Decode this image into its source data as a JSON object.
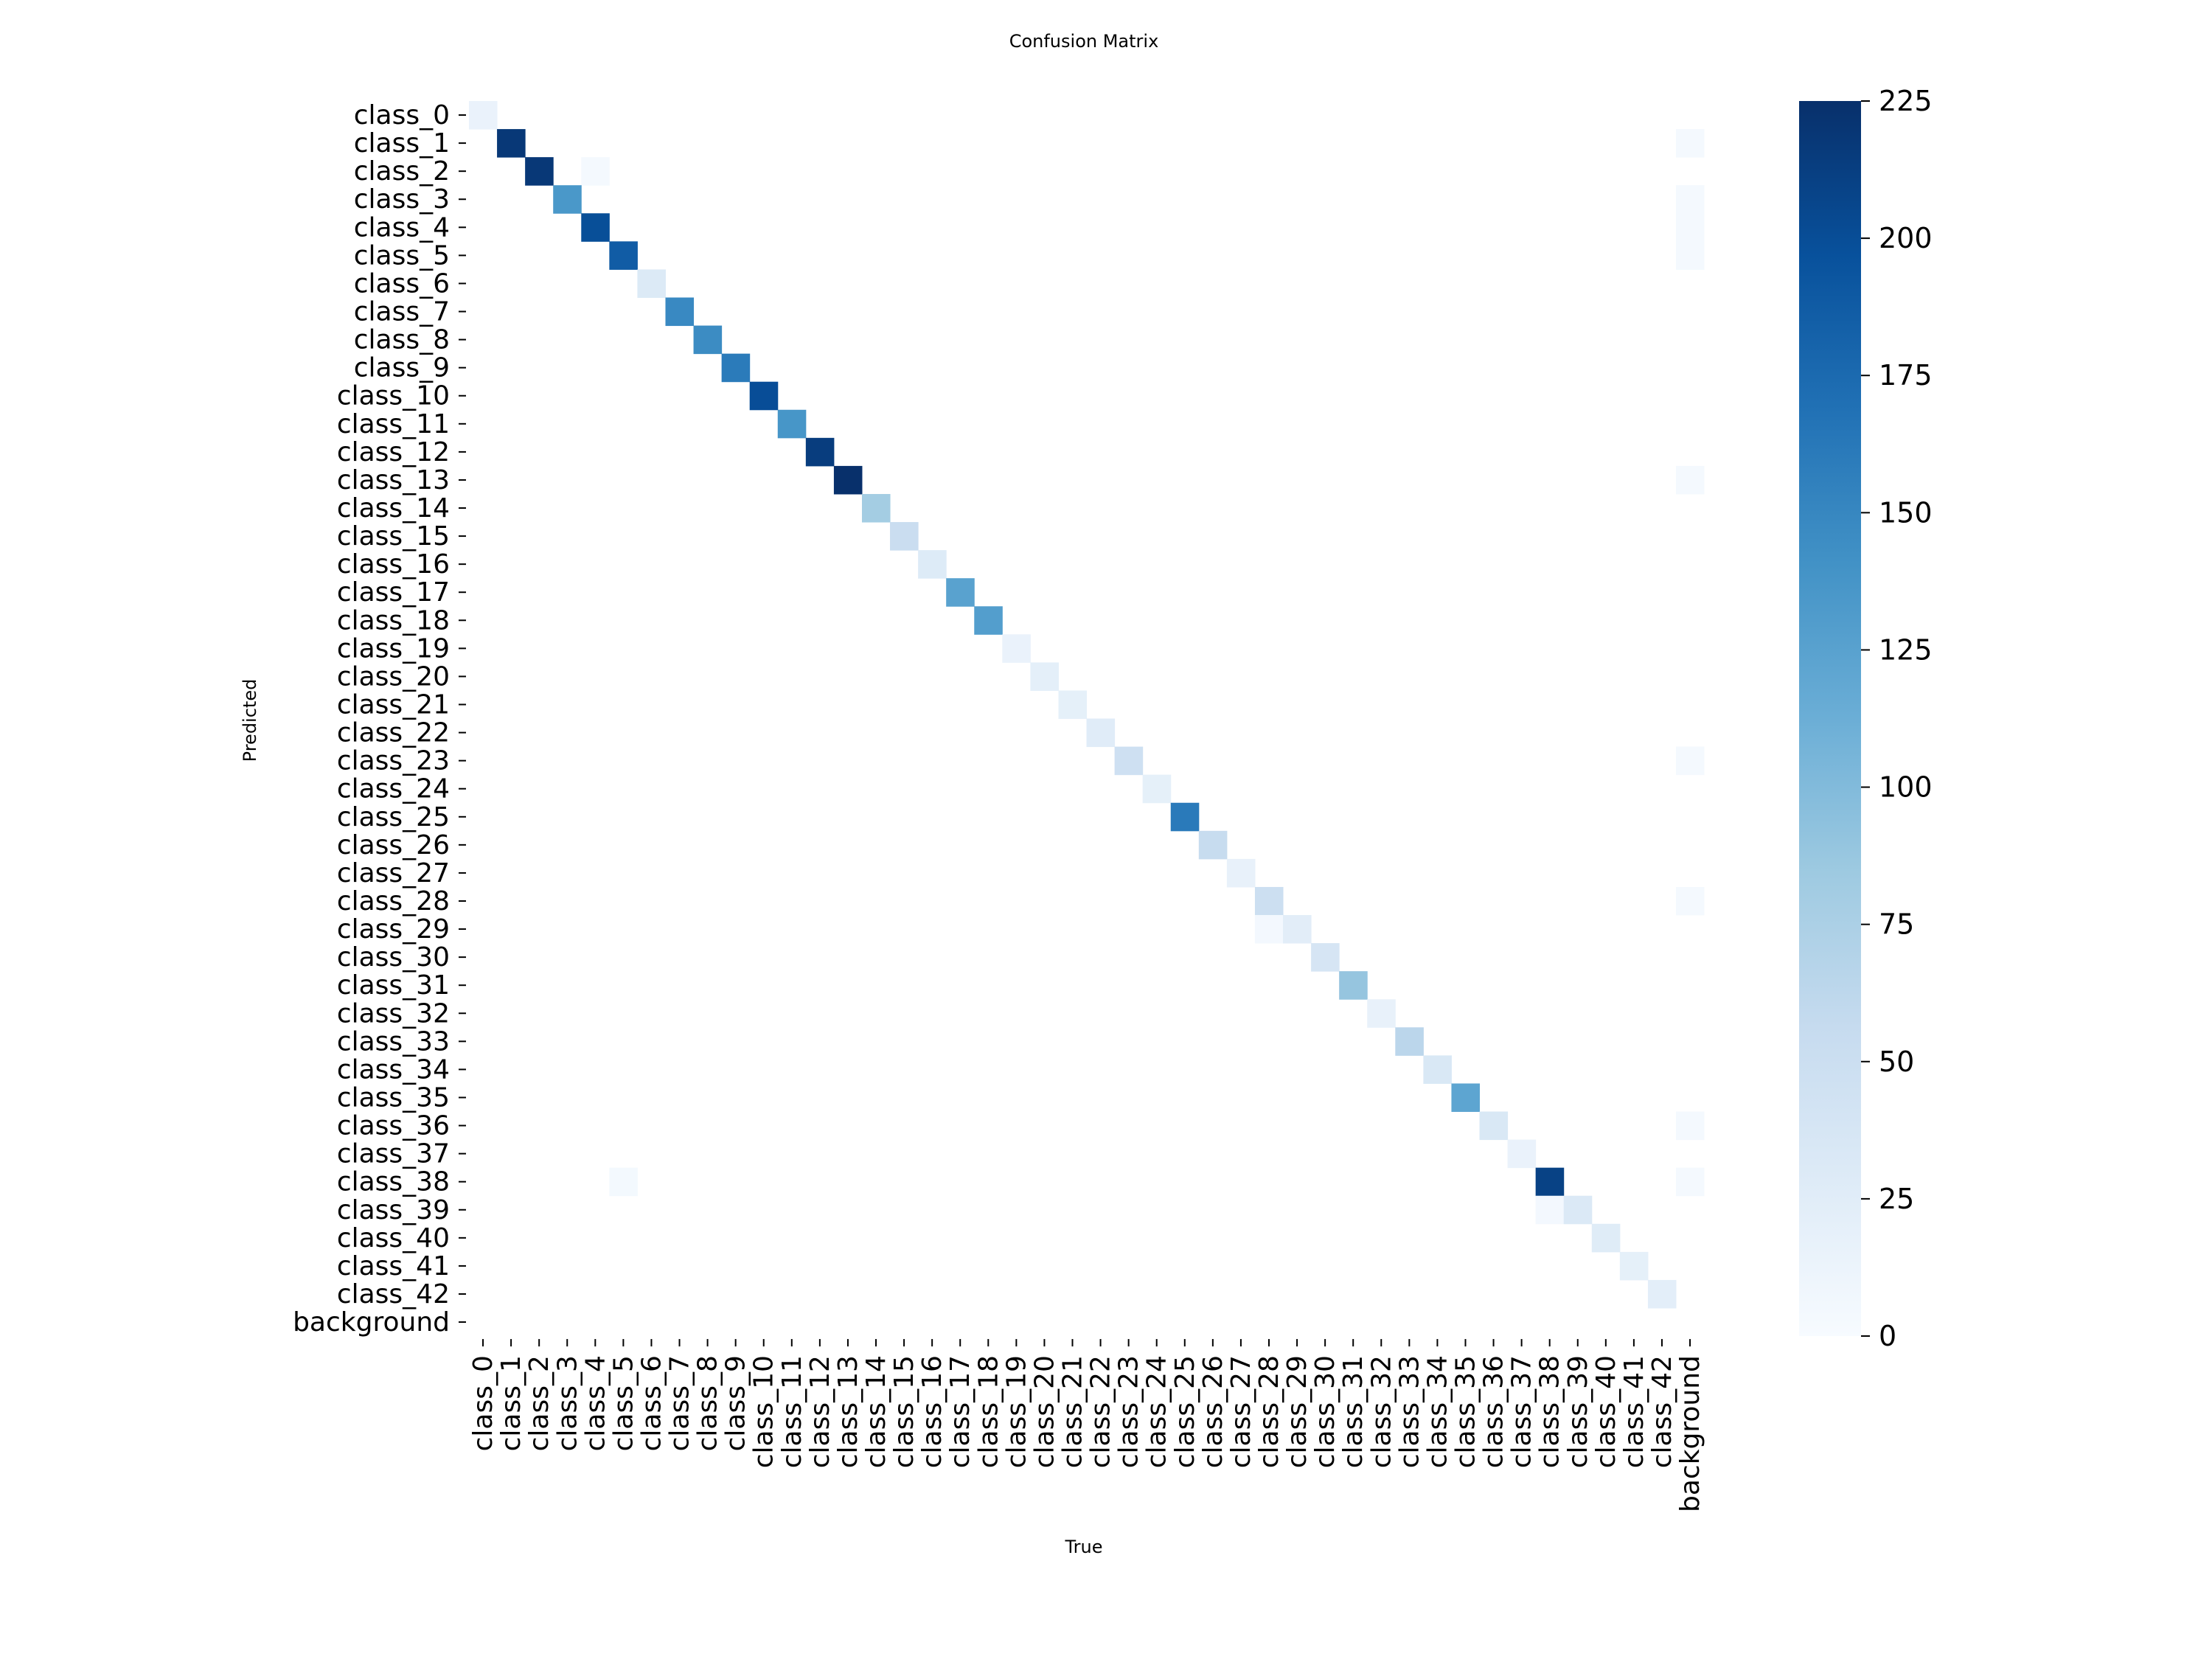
{
  "chart_data": {
    "type": "heatmap",
    "title": "Confusion Matrix",
    "xlabel": "True",
    "ylabel": "Predicted",
    "labels": [
      "class_0",
      "class_1",
      "class_2",
      "class_3",
      "class_4",
      "class_5",
      "class_6",
      "class_7",
      "class_8",
      "class_9",
      "class_10",
      "class_11",
      "class_12",
      "class_13",
      "class_14",
      "class_15",
      "class_16",
      "class_17",
      "class_18",
      "class_19",
      "class_20",
      "class_21",
      "class_22",
      "class_23",
      "class_24",
      "class_25",
      "class_26",
      "class_27",
      "class_28",
      "class_29",
      "class_30",
      "class_31",
      "class_32",
      "class_33",
      "class_34",
      "class_35",
      "class_36",
      "class_37",
      "class_38",
      "class_39",
      "class_40",
      "class_41",
      "class_42",
      "background"
    ],
    "diagonal": [
      15,
      218,
      218,
      135,
      199,
      187,
      30,
      148,
      146,
      160,
      200,
      137,
      214,
      225,
      80,
      52,
      29,
      125,
      129,
      15,
      21,
      20,
      26,
      47,
      20,
      161,
      55,
      17,
      49,
      24,
      38,
      89,
      17,
      64,
      34,
      122,
      34,
      15,
      210,
      32,
      27,
      20,
      22,
      0
    ],
    "off_diagonal": [
      {
        "pred": 2,
        "true": 4,
        "value": 3
      },
      {
        "pred": 29,
        "true": 28,
        "value": 5
      },
      {
        "pred": 38,
        "true": 5,
        "value": 4
      },
      {
        "pred": 39,
        "true": 38,
        "value": 5
      },
      {
        "pred": 1,
        "true": 43,
        "value": 3
      },
      {
        "pred": 3,
        "true": 43,
        "value": 3
      },
      {
        "pred": 4,
        "true": 43,
        "value": 3
      },
      {
        "pred": 5,
        "true": 43,
        "value": 3
      },
      {
        "pred": 13,
        "true": 43,
        "value": 3
      },
      {
        "pred": 23,
        "true": 43,
        "value": 3
      },
      {
        "pred": 28,
        "true": 43,
        "value": 3
      },
      {
        "pred": 36,
        "true": 43,
        "value": 3
      },
      {
        "pred": 38,
        "true": 43,
        "value": 3
      }
    ],
    "colorbar": {
      "min": 0,
      "max": 225,
      "ticks": [
        0,
        25,
        50,
        75,
        100,
        125,
        150,
        175,
        200,
        225
      ]
    },
    "colormap": [
      "#f7fbff",
      "#deebf7",
      "#c6dbef",
      "#9ecae1",
      "#6baed6",
      "#4292c6",
      "#2171b5",
      "#08519c",
      "#08306b"
    ]
  }
}
